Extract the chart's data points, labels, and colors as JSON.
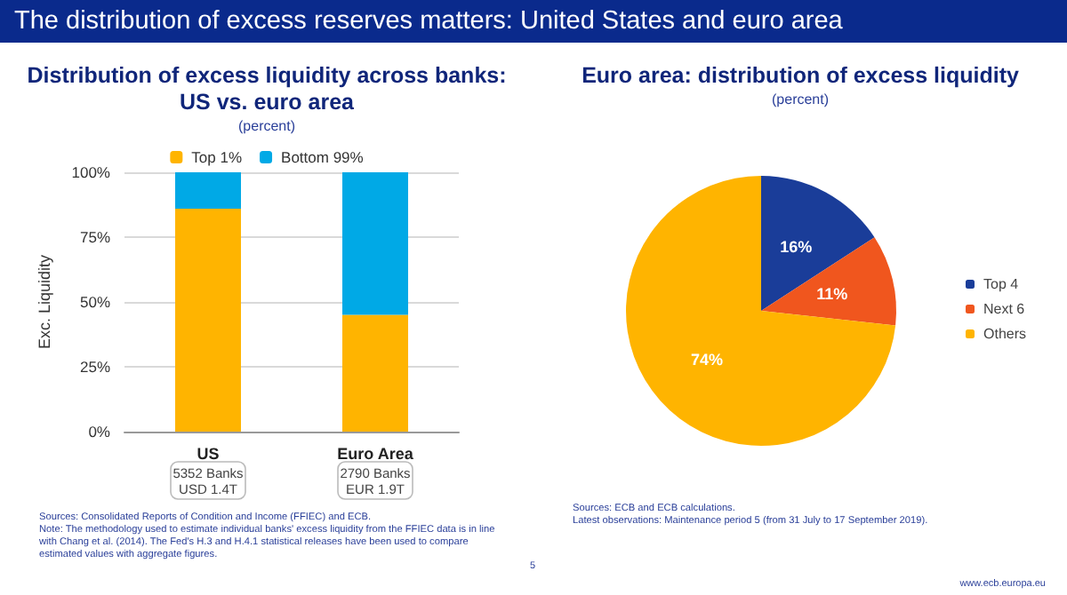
{
  "chart_data": [
    {
      "type": "other",
      "title": "The distribution of excess reserves matters: United States and euro area",
      "color": "#0a2a8c",
      "annotations": [
        "5",
        "www.ecb.europa.eu"
      ]
    },
    {
      "type": "bar",
      "title": "Distribution of excess liquidity across banks:\nUS vs. euro area",
      "subtitle": "(percent)",
      "ylabel": "Exc. Liquidity",
      "categories": [
        "US",
        "Euro Area"
      ],
      "stacked": true,
      "series": [
        {
          "name": "Top 1%",
          "color": "#ffb400",
          "values": [
            86,
            45
          ]
        },
        {
          "name": "Bottom 99%",
          "color": "#00a9e6",
          "values": [
            14,
            55
          ]
        }
      ],
      "ylim": [
        0,
        100
      ],
      "yticks": [
        {
          "value": 0,
          "label": "0%"
        },
        {
          "value": 25,
          "label": "25%"
        },
        {
          "value": 50,
          "label": "50%"
        },
        {
          "value": 75,
          "label": "75%"
        },
        {
          "value": 100,
          "label": "100%"
        }
      ],
      "grid": "y",
      "legend": "top",
      "annotations": [
        "5352 Banks\nUSD 1.4T",
        "2790 Banks\nEUR 1.9T",
        "Sources: Consolidated Reports of Condition and Income (FFIEC) and ECB.\nNote: The methodology used to estimate individual banks' excess liquidity from the FFIEC data is in line with Chang et al. (2014). The Fed's H.3 and H.4.1 statistical releases have been used to compare estimated values with aggregate figures."
      ]
    },
    {
      "type": "pie",
      "title": "Euro area: distribution of excess liquidity",
      "subtitle": "(percent)",
      "categories": [
        "Top 4",
        "Next 6",
        "Others"
      ],
      "values": [
        16,
        11,
        74
      ],
      "colors": [
        "#1a3d99",
        "#f0561e",
        "#ffb400"
      ],
      "value_labels": [
        "16%",
        "11%",
        "74%"
      ],
      "legend": "right",
      "annotations": [
        "Sources: ECB and ECB calculations.\nLatest observations: Maintenance period 5 (from 31 July to 17 September 2019)."
      ]
    }
  ]
}
